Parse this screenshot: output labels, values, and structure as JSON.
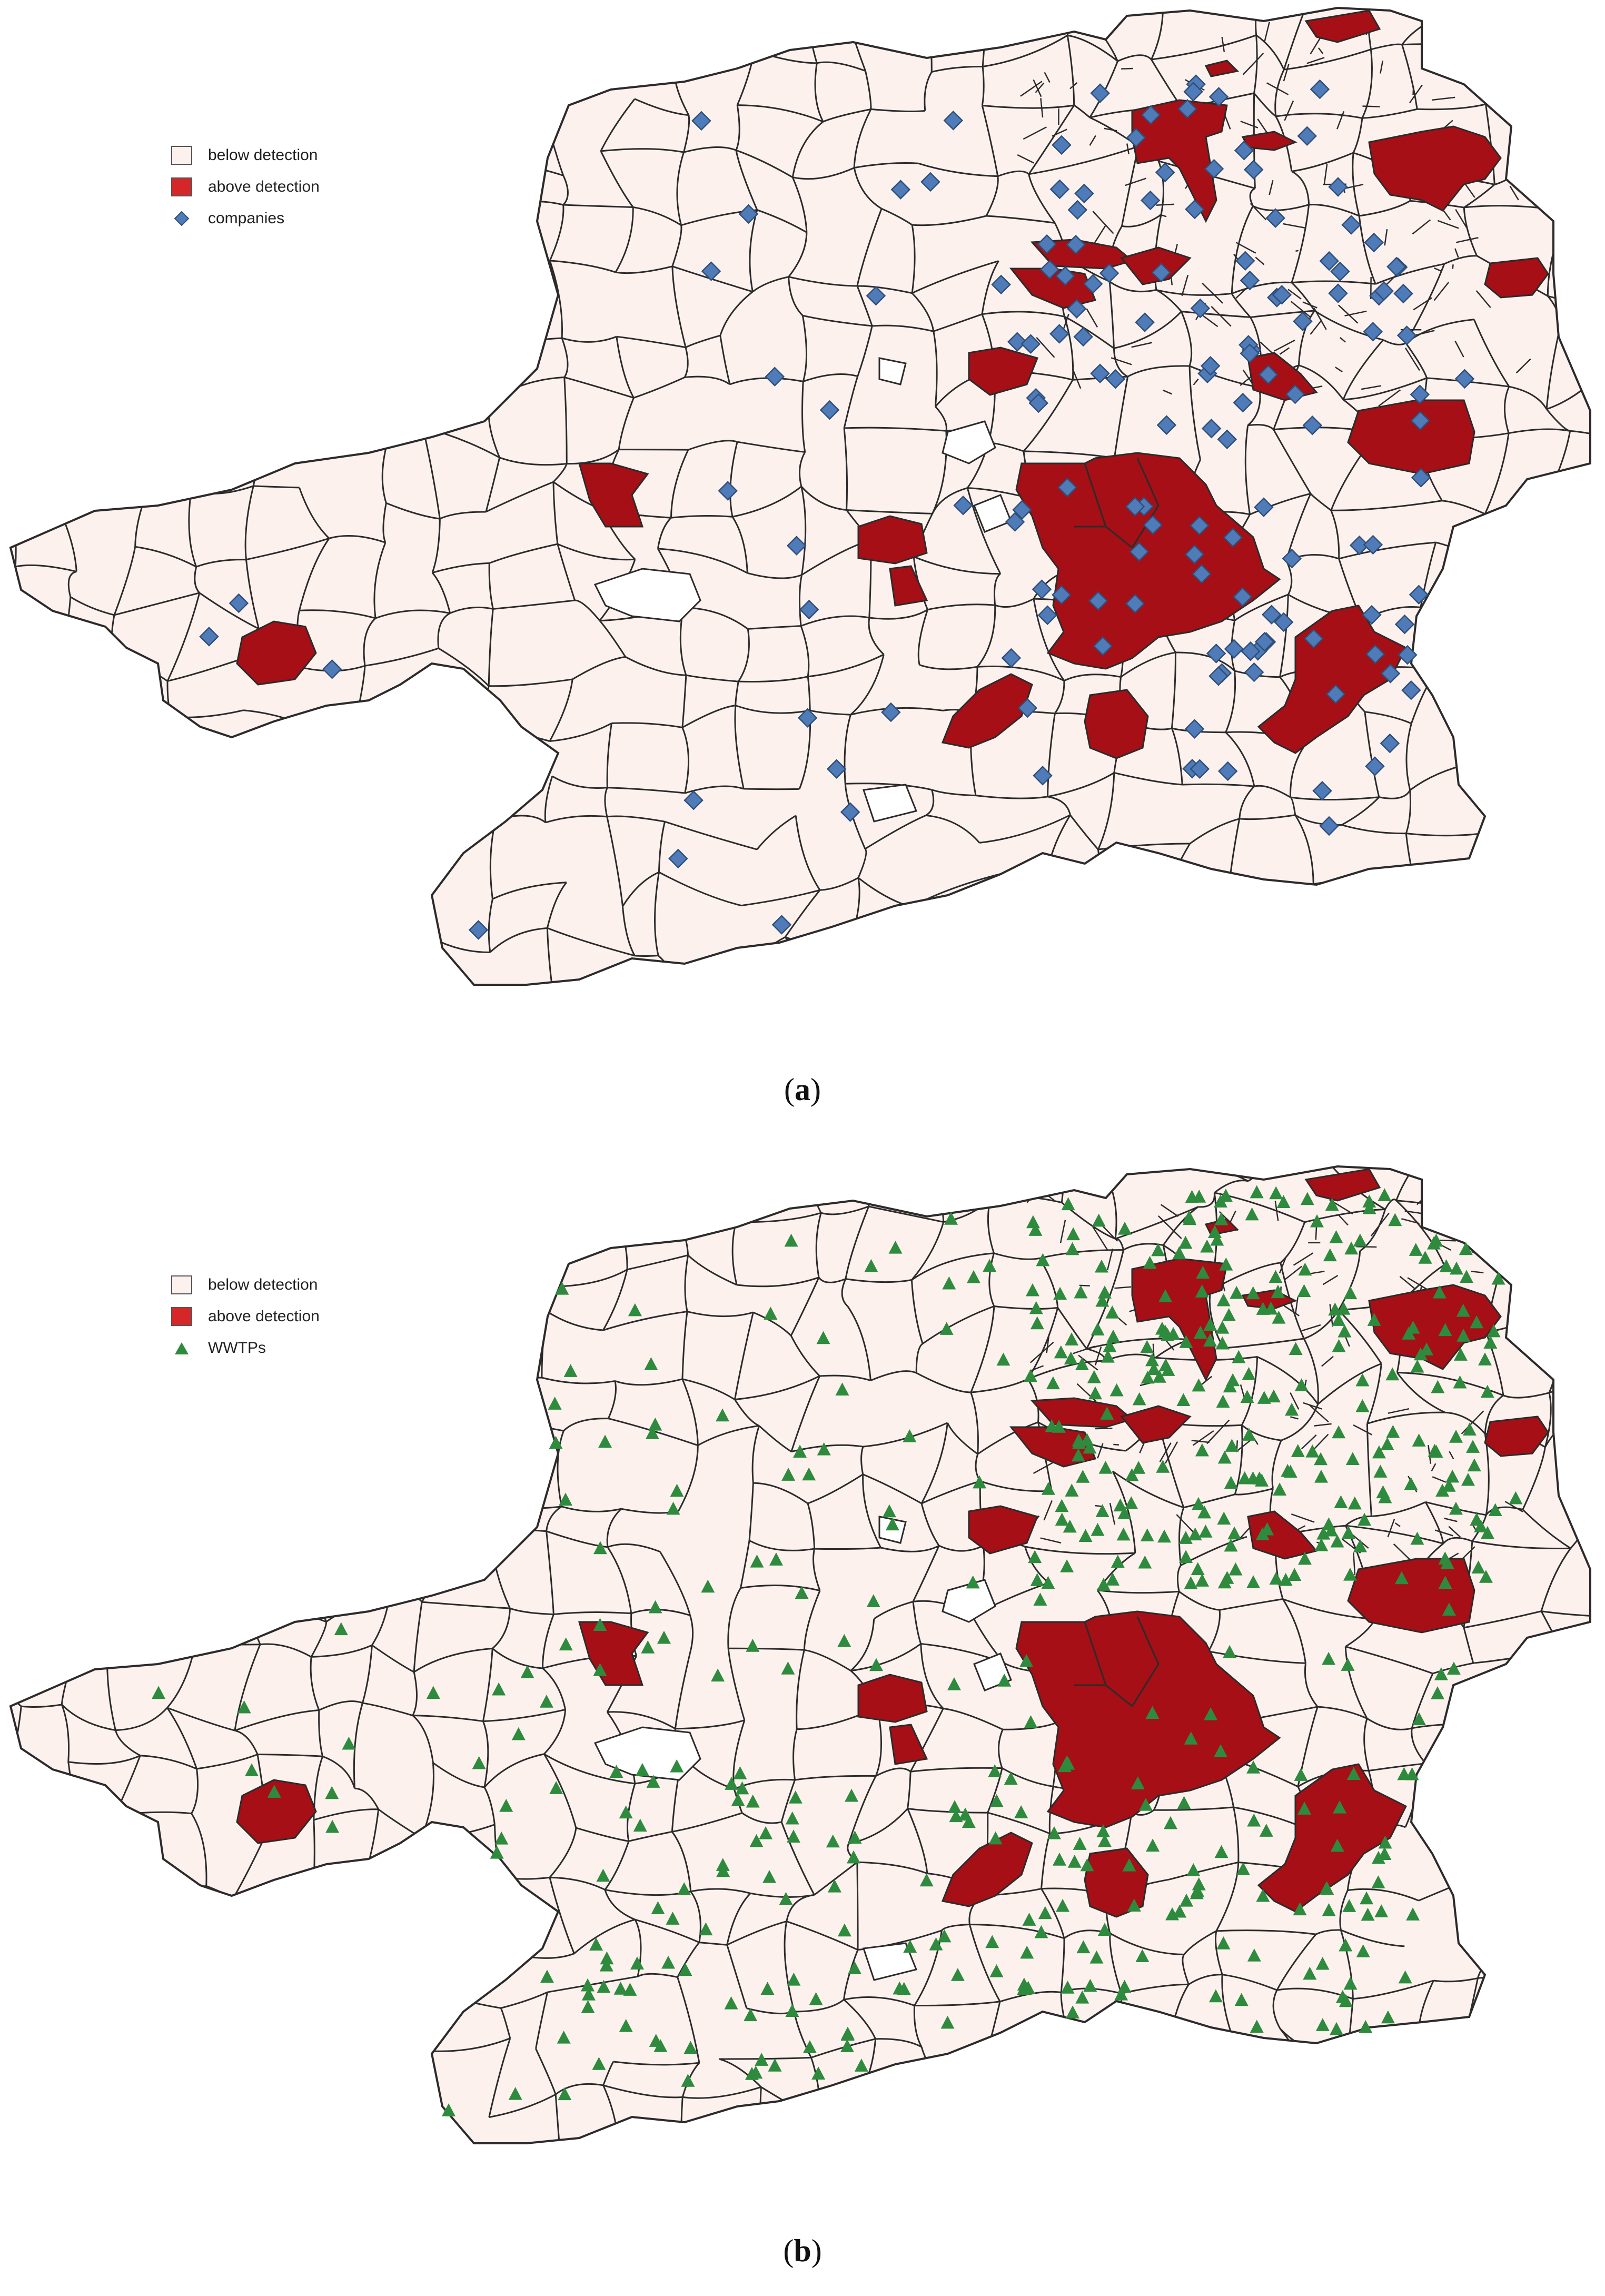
{
  "colors": {
    "below_fill": "#fdf1ee",
    "above_fill": "#a50f15",
    "border": "#2b2b2b",
    "company_marker": "#4f7bb8",
    "wwtp_marker": "#2e8b3e"
  },
  "panel_a": {
    "legend": [
      {
        "label": "below detection",
        "symbol": "swatch-below"
      },
      {
        "label": "above detection",
        "symbol": "swatch-above"
      },
      {
        "label": "companies",
        "symbol": "diamond"
      }
    ],
    "caption_open": "(",
    "caption_letter": "a",
    "caption_close": ")"
  },
  "panel_b": {
    "legend": [
      {
        "label": "below detection",
        "symbol": "swatch-below"
      },
      {
        "label": "above detection",
        "symbol": "swatch-above"
      },
      {
        "label": "WWTPs",
        "symbol": "triangle"
      }
    ],
    "caption_open": "(",
    "caption_letter": "b",
    "caption_close": ")"
  }
}
